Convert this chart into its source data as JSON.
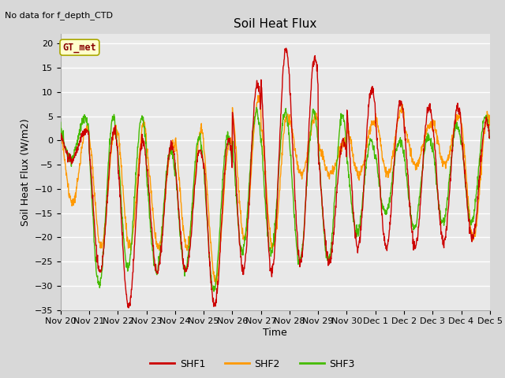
{
  "title": "Soil Heat Flux",
  "top_left_text": "No data for f_depth_CTD",
  "ylabel": "Soil Heat Flux (W/m2)",
  "xlabel": "Time",
  "annotation_box": "GT_met",
  "ylim": [
    -35,
    22
  ],
  "yticks": [
    -35,
    -30,
    -25,
    -20,
    -15,
    -10,
    -5,
    0,
    5,
    10,
    15,
    20
  ],
  "x_tick_labels": [
    "Nov 20",
    "Nov 21",
    "Nov 22",
    "Nov 23",
    "Nov 24",
    "Nov 25",
    "Nov 26",
    "Nov 27",
    "Nov 28",
    "Nov 29",
    "Nov 30",
    "Dec 1",
    "Dec 2",
    "Dec 3",
    "Dec 4",
    "Dec 5"
  ],
  "colors": {
    "SHF1": "#cc0000",
    "SHF2": "#ff9900",
    "SHF3": "#44bb00"
  },
  "background_color": "#d8d8d8",
  "plot_bg_color": "#e8e8e8",
  "grid_color": "#ffffff",
  "legend_colors": [
    "#cc0000",
    "#ff9900",
    "#44bb00"
  ],
  "legend_labels": [
    "SHF1",
    "SHF2",
    "SHF3"
  ]
}
